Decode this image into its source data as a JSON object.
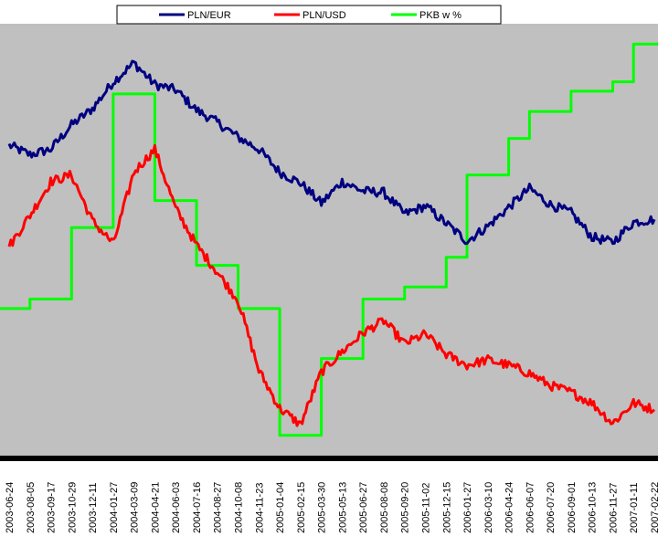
{
  "chart_data": {
    "type": "line",
    "title": "",
    "xlabel": "",
    "ylabel": "",
    "grid": false,
    "legend_position": "top",
    "plot_background": "#c0c0c0",
    "x_ticks": [
      "2003-06-24",
      "2003-08-05",
      "2003-09-17",
      "2003-10-29",
      "2003-12-11",
      "2004-01-27",
      "2004-03-09",
      "2004-04-21",
      "2004-06-03",
      "2004-07-16",
      "2004-08-27",
      "2004-10-08",
      "2004-11-23",
      "2005-01-04",
      "2005-02-15",
      "2005-03-30",
      "2005-05-13",
      "2005-06-27",
      "2005-08-08",
      "2005-09-20",
      "2005-11-02",
      "2005-12-15",
      "2006-01-27",
      "2006-03-10",
      "2006-04-24",
      "2006-06-07",
      "2006-07-20",
      "2006-09-01",
      "2006-10-13",
      "2006-11-27",
      "2007-01-11",
      "2007-02-22"
    ],
    "series": [
      {
        "name": "PLN/EUR",
        "color": "#000080",
        "values": [
          0.65,
          0.58,
          0.62,
          0.8,
          0.92,
          1.12,
          1.26,
          1.1,
          1.06,
          0.91,
          0.82,
          0.71,
          0.62,
          0.45,
          0.37,
          0.22,
          0.38,
          0.31,
          0.3,
          0.14,
          0.2,
          0.07,
          -0.06,
          0.05,
          0.19,
          0.33,
          0.21,
          0.15,
          -0.03,
          -0.07,
          0.08,
          0.1
        ]
      },
      {
        "name": "PLN/USD",
        "color": "#ff0000",
        "values": [
          -0.1,
          0.13,
          0.38,
          0.43,
          0.09,
          -0.08,
          0.45,
          0.62,
          0.18,
          -0.09,
          -0.29,
          -0.5,
          -1.02,
          -1.3,
          -1.42,
          -1.03,
          -0.88,
          -0.74,
          -0.65,
          -0.82,
          -0.75,
          -0.9,
          -0.98,
          -0.94,
          -0.98,
          -1.04,
          -1.13,
          -1.18,
          -1.26,
          -1.41,
          -1.26,
          -1.31
        ]
      },
      {
        "name": "PKB w %",
        "color": "#00ff00",
        "step": true,
        "values": [
          -0.56,
          -0.49,
          -0.49,
          0.04,
          0.04,
          1.03,
          1.03,
          0.24,
          0.24,
          -0.24,
          -0.24,
          -0.56,
          -0.56,
          -1.5,
          -1.5,
          -0.93,
          -0.93,
          -0.49,
          -0.49,
          -0.4,
          -0.4,
          -0.18,
          0.43,
          0.43,
          0.7,
          0.9,
          0.9,
          1.05,
          1.05,
          1.12,
          1.4,
          1.4
        ]
      }
    ],
    "ylim": [
      -1.65,
      1.55
    ]
  }
}
